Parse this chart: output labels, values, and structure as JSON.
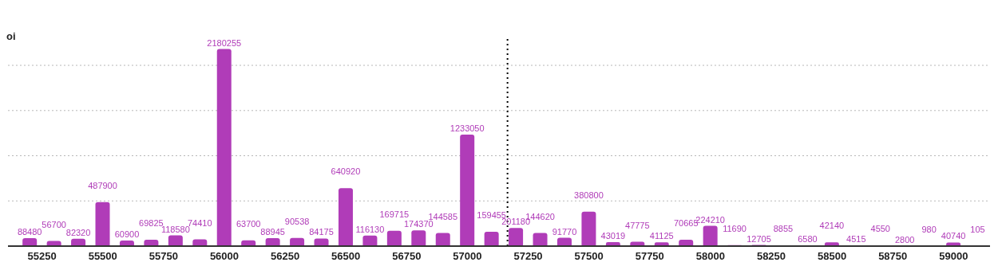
{
  "chart_data": {
    "type": "bar",
    "ylabel": "oi",
    "x": [
      55200,
      55300,
      55400,
      55500,
      55600,
      55700,
      55800,
      55900,
      56000,
      56100,
      56200,
      56300,
      56400,
      56500,
      56600,
      56700,
      56800,
      56900,
      57000,
      57100,
      57200,
      57300,
      57400,
      57500,
      57600,
      57700,
      57800,
      57900,
      58000,
      58100,
      58200,
      58300,
      58400,
      58500,
      58600,
      58700,
      58800,
      58900,
      59000,
      59100
    ],
    "values": [
      88480,
      56700,
      82320,
      487900,
      60900,
      69825,
      118580,
      74410,
      2180255,
      63700,
      88945,
      90538,
      84175,
      640920,
      116130,
      169715,
      174370,
      144585,
      1233050,
      159455,
      201180,
      144620,
      91770,
      380800,
      43019,
      47775,
      41125,
      70665,
      224210,
      11690,
      12705,
      8855,
      6580,
      42140,
      4515,
      4550,
      2800,
      980,
      40740,
      105
    ],
    "color": "#b03cb8",
    "data_labels": true,
    "xlim": [
      55110,
      59150
    ],
    "xticks": [
      55250,
      55500,
      55750,
      56000,
      56250,
      56500,
      56750,
      57000,
      57250,
      57500,
      57750,
      58000,
      58250,
      58500,
      58750,
      59000
    ],
    "ylim": [
      0,
      2300000
    ],
    "yticks": [
      {
        "value": 0,
        "label": null
      },
      {
        "value": 500000,
        "label": null
      },
      {
        "value": 1000000,
        "label": null
      },
      {
        "value": 1500000,
        "label": null
      },
      {
        "value": 2000000,
        "label": null
      }
    ],
    "grid": "y",
    "tick_labels": "x",
    "ref_lines": [
      {
        "axis": "x",
        "value": 57165,
        "label": null,
        "color": "#000000",
        "line_style": "dotted"
      }
    ]
  }
}
